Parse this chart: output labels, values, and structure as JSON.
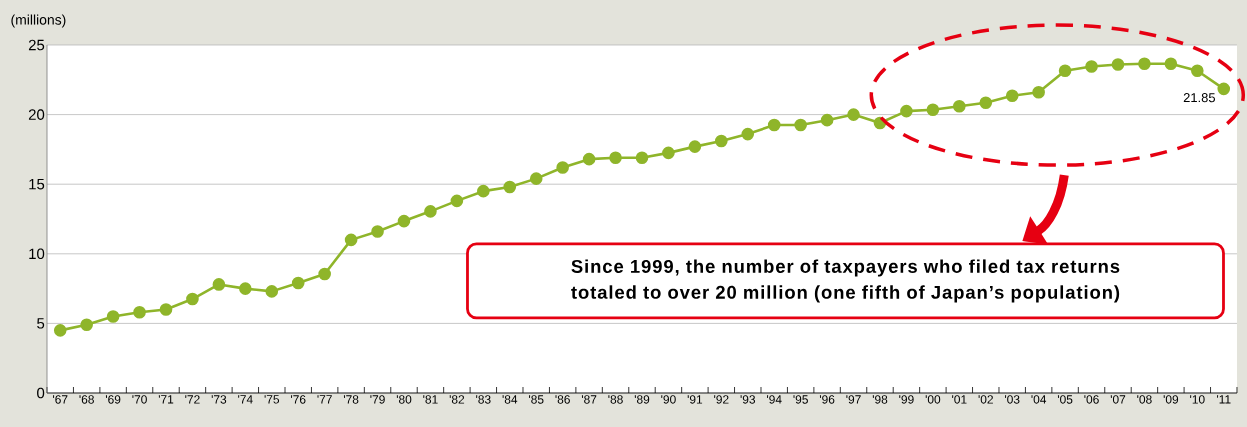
{
  "chart_data": {
    "type": "line",
    "ylabel": "(millions)",
    "categories": [
      "'67",
      "'68",
      "'69",
      "'70",
      "'71",
      "'72",
      "'73",
      "'74",
      "'75",
      "'76",
      "'77",
      "'78",
      "'79",
      "'80",
      "'81",
      "'82",
      "'83",
      "'84",
      "'85",
      "'86",
      "'87",
      "'88",
      "'89",
      "'90",
      "'91",
      "'92",
      "'93",
      "'94",
      "'95",
      "'96",
      "'97",
      "'98",
      "'99",
      "'00",
      "'01",
      "'02",
      "'03",
      "'04",
      "'05",
      "'06",
      "'07",
      "'08",
      "'09",
      "'10",
      "'11"
    ],
    "series": [
      {
        "color": "#8fb52a",
        "values": [
          4.5,
          4.9,
          5.5,
          5.8,
          6.0,
          6.75,
          7.8,
          7.5,
          7.3,
          7.9,
          8.55,
          11.0,
          11.6,
          12.35,
          13.05,
          13.8,
          14.5,
          14.8,
          15.4,
          16.2,
          16.8,
          16.9,
          16.9,
          17.25,
          17.7,
          18.1,
          18.6,
          19.25,
          19.25,
          19.6,
          20.0,
          19.4,
          20.25,
          20.35,
          20.6,
          20.85,
          21.35,
          21.6,
          23.15,
          23.45,
          23.6,
          23.65,
          23.65,
          23.15,
          21.85
        ],
        "value_labels": [
          null,
          null,
          null,
          null,
          null,
          null,
          null,
          null,
          null,
          null,
          null,
          null,
          null,
          null,
          null,
          null,
          null,
          null,
          null,
          null,
          null,
          null,
          null,
          null,
          null,
          null,
          null,
          null,
          null,
          null,
          null,
          null,
          null,
          null,
          null,
          null,
          null,
          null,
          null,
          null,
          null,
          null,
          null,
          null,
          "21.85"
        ]
      }
    ],
    "ylim": [
      0,
      25
    ],
    "yticks": [
      0,
      5,
      10,
      15,
      20,
      25
    ],
    "grid": "y",
    "marker": "circle",
    "line_style": "solid",
    "annotations": [
      "Since 1999, the number of taxpayers who filed tax returns totaled to over 20 million (one fifth of Japan’s population)"
    ]
  }
}
